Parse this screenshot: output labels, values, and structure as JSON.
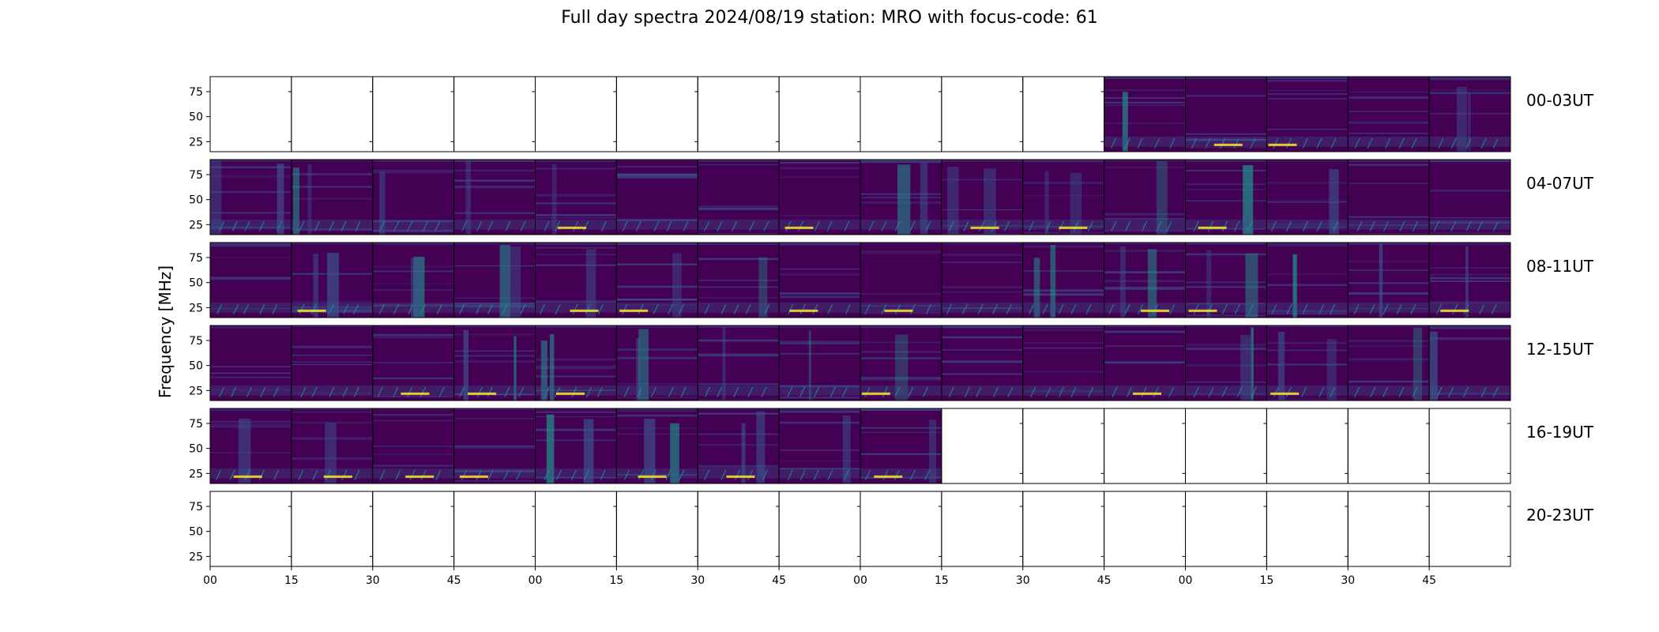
{
  "title": "Full day spectra 2024/08/19 station: MRO with focus-code: 61",
  "chart_data": {
    "type": "heatmap",
    "title": "Full day spectra 2024/08/19 station: MRO with focus-code: 61",
    "ylabel": "Frequency [MHz]",
    "xlabel": "",
    "y_ticks": [
      "75",
      "50",
      "25"
    ],
    "y_range_mhz": [
      15,
      90
    ],
    "x_tick_labels": [
      "00",
      "15",
      "30",
      "45",
      "00",
      "15",
      "30",
      "45",
      "00",
      "15",
      "30",
      "45",
      "00",
      "15",
      "30",
      "45"
    ],
    "colormap": [
      "#440154",
      "#3b528b",
      "#21918c",
      "#5ec962",
      "#fde725"
    ],
    "rows": [
      {
        "label": "00-03UT",
        "panels": [
          0,
          0,
          0,
          0,
          0,
          0,
          0,
          0,
          0,
          0,
          0,
          1,
          1,
          1,
          1,
          1
        ]
      },
      {
        "label": "04-07UT",
        "panels": [
          1,
          1,
          1,
          1,
          1,
          1,
          1,
          1,
          1,
          1,
          1,
          1,
          1,
          1,
          1,
          1
        ]
      },
      {
        "label": "08-11UT",
        "panels": [
          1,
          1,
          1,
          1,
          1,
          1,
          1,
          1,
          1,
          1,
          1,
          1,
          1,
          1,
          1,
          1
        ]
      },
      {
        "label": "12-15UT",
        "panels": [
          1,
          1,
          1,
          1,
          1,
          1,
          1,
          1,
          1,
          1,
          1,
          1,
          1,
          1,
          1,
          1
        ]
      },
      {
        "label": "16-19UT",
        "panels": [
          1,
          1,
          1,
          1,
          1,
          1,
          1,
          1,
          1,
          0,
          0,
          0,
          0,
          0,
          0,
          0
        ]
      },
      {
        "label": "20-23UT",
        "panels": [
          0,
          0,
          0,
          0,
          0,
          0,
          0,
          0,
          0,
          0,
          0,
          0,
          0,
          0,
          0,
          0
        ]
      }
    ]
  }
}
